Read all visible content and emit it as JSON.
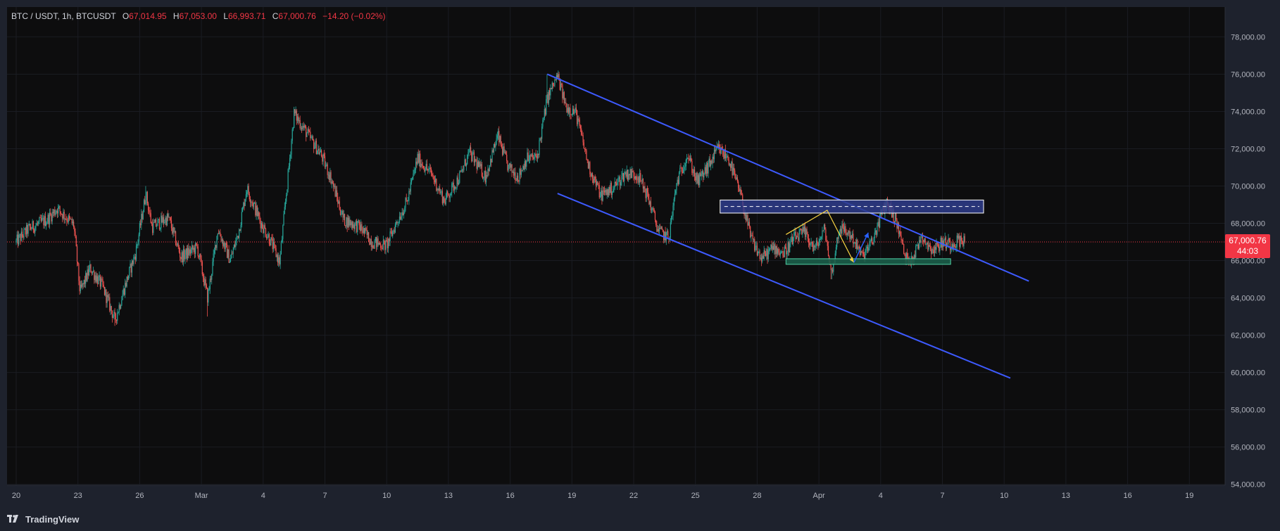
{
  "header": {
    "symbol": "BTC / USDT, 1h, BTCUSDT",
    "open_label": "O",
    "open": "67,014.95",
    "high_label": "H",
    "high": "67,053.00",
    "low_label": "L",
    "low": "66,993.71",
    "close_label": "C",
    "close": "67,000.76",
    "change": "−14.20 (−0.02%)"
  },
  "price_tag": {
    "price": "67,000.76",
    "countdown": "44:03"
  },
  "footer": {
    "brand": "TradingView"
  },
  "colors": {
    "background": "#0d0d0e",
    "up": "#26a69a",
    "down": "#ef5350",
    "trendline": "#3d5afe",
    "last_price": "#f23645",
    "resistance_zone": "#2f3d8c",
    "support_zone": "#1b5e4a",
    "projection_yellow": "#f5d142",
    "projection_blue": "#2962ff"
  },
  "chart_data": {
    "type": "candlestick",
    "x_tick_labels": [
      "20",
      "23",
      "26",
      "Mar",
      "4",
      "7",
      "10",
      "13",
      "16",
      "19",
      "22",
      "25",
      "28",
      "Apr",
      "4",
      "7",
      "10",
      "13",
      "16",
      "19"
    ],
    "y_tick_labels": [
      "78,000.00",
      "76,000.00",
      "74,000.00",
      "72,000.00",
      "70,000.00",
      "68,000.00",
      "66,000.00",
      "64,000.00",
      "62,000.00",
      "60,000.00",
      "58,000.00",
      "56,000.00",
      "54,000.00"
    ],
    "y_ticks": [
      78000,
      76000,
      74000,
      72000,
      70000,
      68000,
      66000,
      64000,
      62000,
      60000,
      58000,
      56000,
      54000
    ],
    "ylim": [
      53950,
      79600
    ],
    "xlim_days": [
      -0.5,
      59.0
    ],
    "last_price": 67000.76,
    "path_anchors": [
      [
        0,
        67000
      ],
      [
        0.6,
        67700
      ],
      [
        1.5,
        68200
      ],
      [
        2.0,
        68800
      ],
      [
        2.8,
        67900
      ],
      [
        3.1,
        64300
      ],
      [
        3.6,
        65600
      ],
      [
        4.2,
        64600
      ],
      [
        4.8,
        62800
      ],
      [
        5.3,
        64700
      ],
      [
        5.8,
        66400
      ],
      [
        6.3,
        69600
      ],
      [
        6.6,
        67800
      ],
      [
        7.4,
        68300
      ],
      [
        8.0,
        66200
      ],
      [
        8.8,
        66700
      ],
      [
        9.3,
        64000
      ],
      [
        9.8,
        67700
      ],
      [
        10.4,
        66000
      ],
      [
        10.8,
        67500
      ],
      [
        11.2,
        69900
      ],
      [
        11.9,
        68000
      ],
      [
        12.3,
        67200
      ],
      [
        12.8,
        65900
      ],
      [
        13.5,
        73900
      ],
      [
        14.2,
        72700
      ],
      [
        14.8,
        71700
      ],
      [
        15.3,
        70400
      ],
      [
        15.9,
        68200
      ],
      [
        16.7,
        67800
      ],
      [
        17.3,
        67000
      ],
      [
        18.0,
        66800
      ],
      [
        18.5,
        68100
      ],
      [
        19.0,
        69200
      ],
      [
        19.5,
        71500
      ],
      [
        20.2,
        70600
      ],
      [
        20.8,
        69200
      ],
      [
        21.6,
        70600
      ],
      [
        22.0,
        71800
      ],
      [
        22.8,
        70500
      ],
      [
        23.4,
        72700
      ],
      [
        23.9,
        71000
      ],
      [
        24.4,
        70500
      ],
      [
        24.8,
        71500
      ],
      [
        25.3,
        71500
      ],
      [
        25.8,
        74700
      ],
      [
        26.3,
        75900
      ],
      [
        26.7,
        74300
      ],
      [
        27.2,
        73900
      ],
      [
        27.8,
        71100
      ],
      [
        28.4,
        69500
      ],
      [
        29.0,
        69900
      ],
      [
        29.6,
        70700
      ],
      [
        30.2,
        70600
      ],
      [
        30.7,
        69400
      ],
      [
        31.2,
        67600
      ],
      [
        31.7,
        67200
      ],
      [
        32.1,
        70200
      ],
      [
        32.6,
        71700
      ],
      [
        33.1,
        70200
      ],
      [
        33.6,
        71000
      ],
      [
        34.1,
        72000
      ],
      [
        34.6,
        71500
      ],
      [
        35.2,
        69500
      ],
      [
        35.7,
        67200
      ],
      [
        36.2,
        66100
      ],
      [
        36.8,
        66700
      ],
      [
        37.3,
        66400
      ],
      [
        37.8,
        67200
      ],
      [
        38.3,
        67500
      ],
      [
        38.8,
        66600
      ],
      [
        39.3,
        67700
      ],
      [
        39.6,
        65200
      ],
      [
        40.0,
        67800
      ],
      [
        40.6,
        67300
      ],
      [
        41.1,
        66200
      ],
      [
        41.6,
        67000
      ],
      [
        42.0,
        68400
      ],
      [
        42.3,
        69100
      ],
      [
        42.6,
        68500
      ],
      [
        42.9,
        67600
      ],
      [
        43.2,
        66100
      ],
      [
        43.6,
        66200
      ],
      [
        44.0,
        67400
      ],
      [
        44.3,
        66800
      ],
      [
        44.6,
        66600
      ],
      [
        45.0,
        67000
      ],
      [
        45.4,
        66900
      ],
      [
        45.8,
        67100
      ],
      [
        46.1,
        67000
      ]
    ],
    "wick_spikes": [
      {
        "day": 13.5,
        "high": 74000
      },
      {
        "day": 25.8,
        "high": 76000
      },
      {
        "day": 6.3,
        "high": 70000
      },
      {
        "day": 4.8,
        "low": 62500
      },
      {
        "day": 9.3,
        "low": 63000
      },
      {
        "day": 39.6,
        "low": 65000
      },
      {
        "day": 42.3,
        "high": 69300
      }
    ],
    "drawings": {
      "channel_upper": {
        "from": [
          25.8,
          76000
        ],
        "to": [
          49.2,
          64900
        ]
      },
      "channel_lower": {
        "from": [
          26.3,
          69600
        ],
        "to": [
          48.3,
          59700
        ]
      },
      "resistance_zone": {
        "x": [
          34.2,
          47.0
        ],
        "y": [
          68550,
          69250
        ],
        "mid": 68900
      },
      "support_zone": {
        "x": [
          37.4,
          45.4
        ],
        "y": [
          65800,
          66100
        ]
      },
      "yellow_path": [
        [
          37.4,
          67400
        ],
        [
          39.4,
          68700
        ],
        [
          40.7,
          65900
        ]
      ],
      "blue_arrow": [
        [
          40.7,
          65900
        ],
        [
          41.4,
          67500
        ]
      ]
    }
  }
}
